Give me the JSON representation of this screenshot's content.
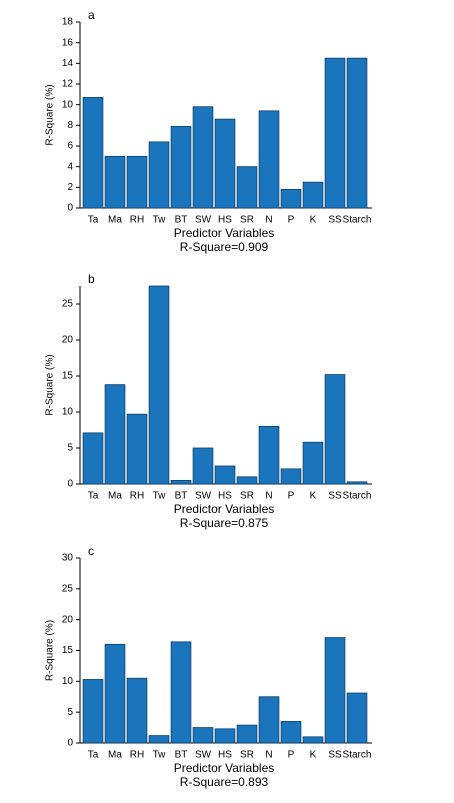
{
  "chart_data": [
    {
      "type": "bar",
      "panel_label": "a",
      "xlabel": "Predictor Variables",
      "subtitle": "R-Square=0.909",
      "ylabel": "R-Square (%)",
      "categories": [
        "Ta",
        "Ma",
        "RH",
        "Tw",
        "BT",
        "SW",
        "HS",
        "SR",
        "N",
        "P",
        "K",
        "SS",
        "Starch"
      ],
      "values": [
        10.7,
        5.0,
        5.0,
        6.4,
        7.9,
        9.8,
        8.6,
        4.0,
        9.4,
        1.8,
        2.5,
        14.5,
        14.5
      ],
      "color": "#1a75bc",
      "ylim": [
        0,
        18
      ],
      "yticks": [
        0,
        2,
        4,
        6,
        8,
        10,
        12,
        14,
        16,
        18
      ]
    },
    {
      "type": "bar",
      "panel_label": "b",
      "xlabel": "Predictor Variables",
      "subtitle": "R-Square=0.875",
      "ylabel": "R-Square (%)",
      "categories": [
        "Ta",
        "Ma",
        "RH",
        "Tw",
        "BT",
        "SW",
        "HS",
        "SR",
        "N",
        "P",
        "K",
        "SS",
        "Starch"
      ],
      "values": [
        7.1,
        13.8,
        9.7,
        27.5,
        0.5,
        5.0,
        2.5,
        1.0,
        8.0,
        2.1,
        5.8,
        15.2,
        0.3
      ],
      "color": "#1a75bc",
      "ylim": [
        0,
        27.5
      ],
      "yticks": [
        0,
        5,
        10,
        15,
        20,
        25
      ]
    },
    {
      "type": "bar",
      "panel_label": "c",
      "xlabel": "Predictor Variables",
      "subtitle": "R-Square=0.893",
      "ylabel": "R-Square (%)",
      "categories": [
        "Ta",
        "Ma",
        "RH",
        "Tw",
        "BT",
        "SW",
        "HS",
        "SR",
        "N",
        "P",
        "K",
        "SS",
        "Starch"
      ],
      "values": [
        10.3,
        16.0,
        10.5,
        1.2,
        16.4,
        2.5,
        2.3,
        2.9,
        7.5,
        3.5,
        1.0,
        17.1,
        8.1
      ],
      "color": "#1a75bc",
      "ylim": [
        0,
        30
      ],
      "yticks": [
        0,
        5,
        10,
        15,
        20,
        25,
        30
      ]
    }
  ]
}
